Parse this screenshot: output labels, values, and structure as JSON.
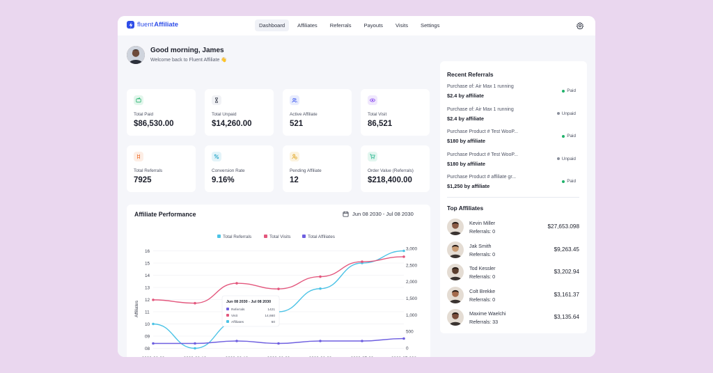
{
  "app": {
    "logo_light": "fluent",
    "logo_bold": "Affiliate",
    "nav": [
      {
        "label": "Dashboard"
      },
      {
        "label": "Affiliates"
      },
      {
        "label": "Referrals"
      },
      {
        "label": "Payouts"
      },
      {
        "label": "Visits"
      },
      {
        "label": "Settings"
      }
    ],
    "icons": {
      "logo": "bolt-icon",
      "settings": "gear-icon"
    }
  },
  "greeting": {
    "title": "Good morning, James",
    "subtitle": "Welcome back to Fluent Affiliate 👋"
  },
  "stats": [
    {
      "label": "Total Paid",
      "value": "$86,530.00",
      "icon": "wallet-icon",
      "color": "#20b26b",
      "bg": "#e3f6ec"
    },
    {
      "label": "Total Unpaid",
      "value": "$14,260.00",
      "icon": "hourglass-icon",
      "color": "#3b3f4d",
      "bg": "#f1f2f5"
    },
    {
      "label": "Active Affiliate",
      "value": "521",
      "icon": "users-icon",
      "color": "#3f5bf0",
      "bg": "#e8ecfd"
    },
    {
      "label": "Total Visit",
      "value": "86,521",
      "icon": "eye-icon",
      "color": "#8c4ef0",
      "bg": "#f0e8fd"
    },
    {
      "label": "Total Referrals",
      "value": "7925",
      "icon": "share-icon",
      "color": "#f07a3c",
      "bg": "#fdeee5"
    },
    {
      "label": "Conversion Rate",
      "value": "9.16%",
      "icon": "percent-icon",
      "color": "#2aa7c9",
      "bg": "#e3f4f9"
    },
    {
      "label": "Pending Affiliate",
      "value": "12",
      "icon": "user-clock-icon",
      "color": "#e0a41e",
      "bg": "#fcf3df"
    },
    {
      "label": "Order Value (Referrals)",
      "value": "$218,400.00",
      "icon": "cart-icon",
      "color": "#1fb38a",
      "bg": "#e2f6ef"
    }
  ],
  "chart_panel": {
    "title": "Affiliate Performance",
    "date_range": "Jun 08 2030 - Jul 08 2030",
    "icon": "calendar-icon"
  },
  "chart_data": {
    "type": "line",
    "x": [
      "2030-06-08",
      "2030-06-13",
      "2030-06-18",
      "2030-06-23",
      "2030-06-28",
      "2030-07-03",
      "2030-07-008"
    ],
    "ylabel": "Affiliates",
    "left_ticks": [
      "16",
      "15",
      "14",
      "13",
      "12",
      "11",
      "10",
      "09",
      "08"
    ],
    "right_ticks": [
      "3,000",
      "2,500",
      "2,000",
      "1,500",
      "1,000",
      "500",
      "0"
    ],
    "series": [
      {
        "name": "Total Referrals",
        "color": "#4cc3e6",
        "values": [
          10,
          8,
          10.2,
          11,
          12.9,
          15,
          16
        ],
        "axis": "left"
      },
      {
        "name": "Total Visits",
        "color": "#e3577d",
        "values": [
          1450,
          1350,
          1950,
          1780,
          2150,
          2600,
          2750
        ],
        "axis": "right"
      },
      {
        "name": "Total Affiliates",
        "color": "#6e5fe0",
        "values": [
          8.4,
          8.4,
          8.6,
          8.4,
          8.6,
          8.6,
          8.8
        ],
        "axis": "left"
      }
    ],
    "tooltip": {
      "title": "Jun 08 2030 - Jul 08 2030",
      "rows": [
        {
          "label": "Referrals",
          "value": "1421"
        },
        {
          "label": "Visit",
          "value": "14,660"
        },
        {
          "label": "Affiliates",
          "value": "60"
        }
      ]
    }
  },
  "recent_referrals": {
    "title": "Recent Referrals",
    "items": [
      {
        "name": "Purchase of: Air Max 1 running",
        "amount": "$2.4 by affiliate",
        "status": "Paid",
        "color": "#20b26b"
      },
      {
        "name": "Purchase of: Air Max 1 running",
        "amount": "$2.4 by affiliate",
        "status": "Unpaid",
        "color": "#8a8f9c"
      },
      {
        "name": "Purchase Product # Test WooP...",
        "amount": "$180 by affiliate",
        "status": "Paid",
        "color": "#20b26b"
      },
      {
        "name": "Purchase Product # Test WooP...",
        "amount": "$180 by affiliate",
        "status": "Unpaid",
        "color": "#8a8f9c"
      },
      {
        "name": "Purchase Product # affiliate gr...",
        "amount": "$1,250 by affiliate",
        "status": "Paid",
        "color": "#20b26b"
      }
    ]
  },
  "top_affiliates": {
    "title": "Top Affiliates",
    "items": [
      {
        "name": "Kevin Miller",
        "referrals": "Referrals: 0",
        "amount": "$27,653.098",
        "avatar": "#8a5a44"
      },
      {
        "name": "Jak Smith",
        "referrals": "Referrals: 0",
        "amount": "$9,263.45",
        "avatar": "#c89a72"
      },
      {
        "name": "Tod Kessler",
        "referrals": "Referrals: 0",
        "amount": "$3,202.94",
        "avatar": "#5b3e2e"
      },
      {
        "name": "Colt Brekke",
        "referrals": "Referrals: 0",
        "amount": "$3,161.37",
        "avatar": "#a46b4d"
      },
      {
        "name": "Maxime Waelchi",
        "referrals": "Referrals: 33",
        "amount": "$3,135.64",
        "avatar": "#7a4c3a"
      }
    ]
  }
}
